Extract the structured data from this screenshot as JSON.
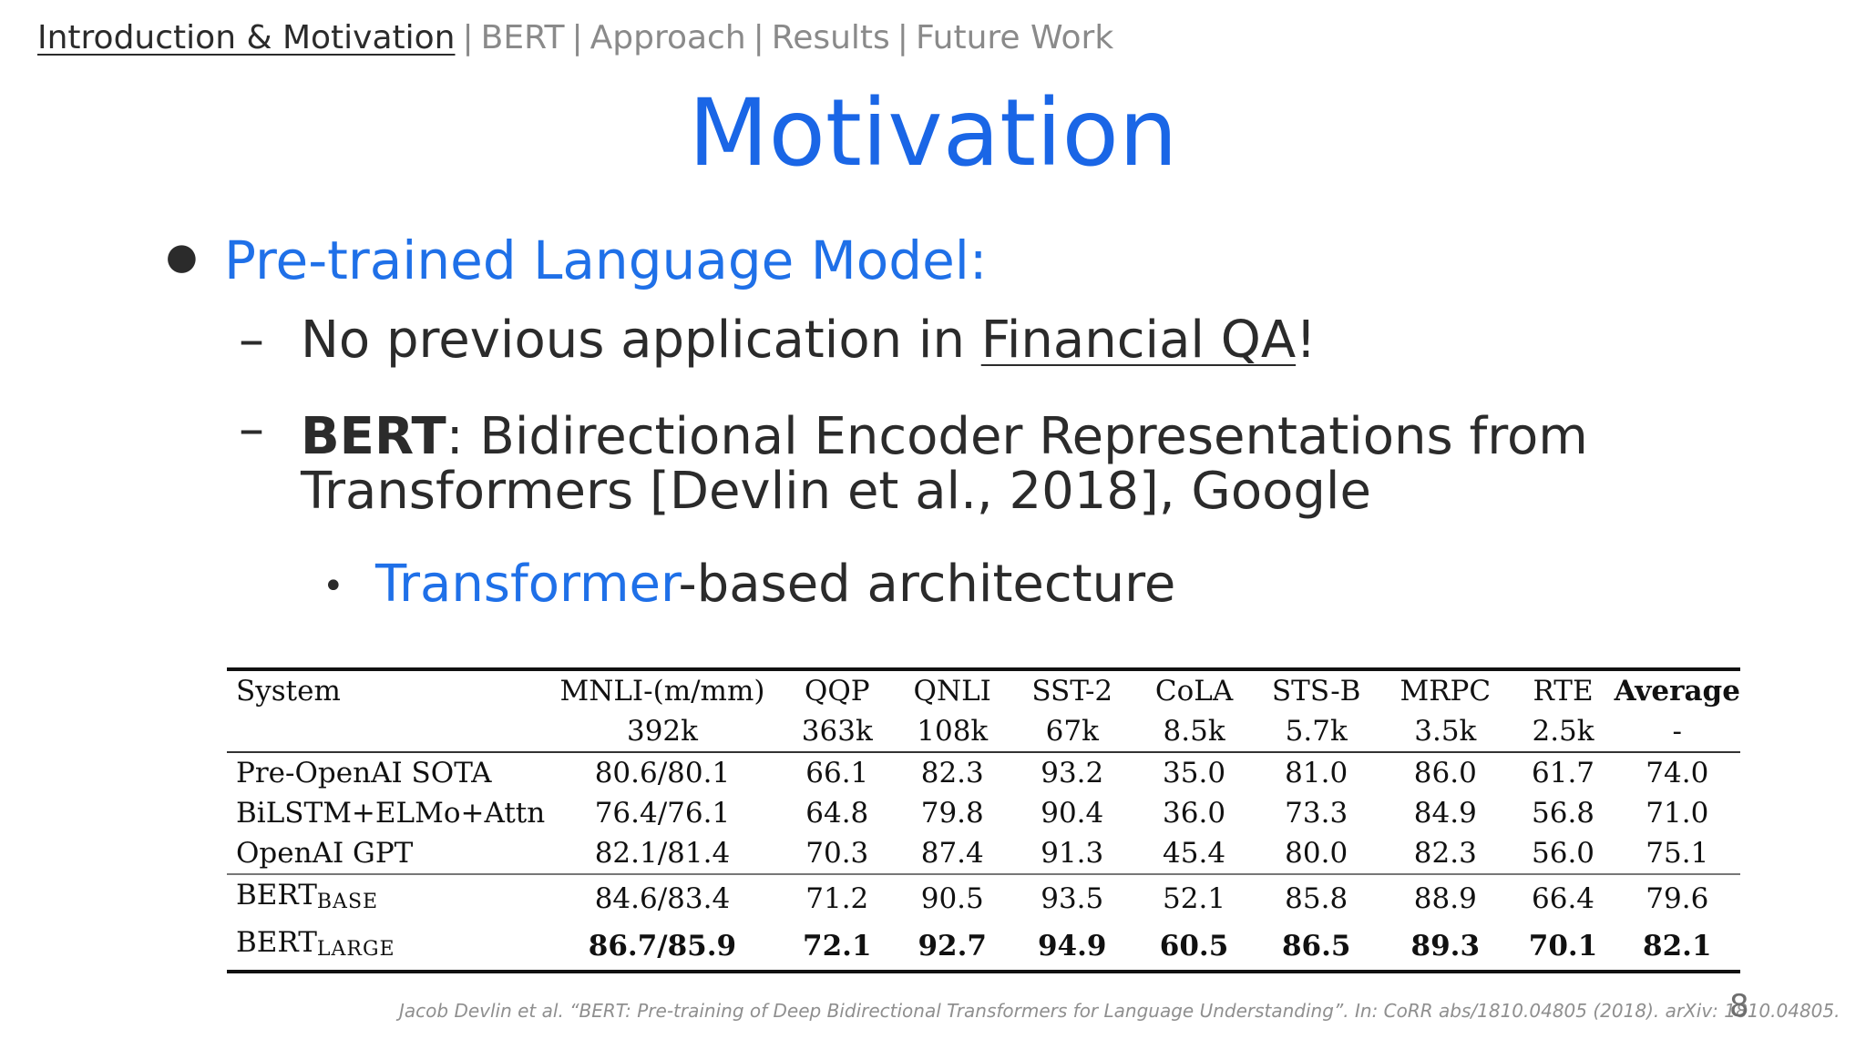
{
  "nav": {
    "items": [
      "Introduction & Motivation",
      "BERT",
      "Approach",
      "Results",
      "Future Work"
    ],
    "separator": "|"
  },
  "slide": {
    "title": "Motivation",
    "bullet1": "Pre-trained Language Model:",
    "sub1": {
      "dash": "–",
      "pre": "No previous application in ",
      "link": "Financial QA",
      "post": "!"
    },
    "sub2": {
      "dash": "–",
      "bold": "BERT",
      "line1": ": Bidirectional Encoder Representations from",
      "line2": "Transformers [Devlin et al., 2018], Google"
    },
    "sub3": {
      "dot": "•",
      "highlight": "Transformer",
      "rest": "-based architecture"
    }
  },
  "table": {
    "headers": [
      "System",
      "MNLI-(m/mm)",
      "QQP",
      "QNLI",
      "SST-2",
      "CoLA",
      "STS-B",
      "MRPC",
      "RTE",
      "Average"
    ],
    "sizes": [
      "",
      "392k",
      "363k",
      "108k",
      "67k",
      "8.5k",
      "5.7k",
      "3.5k",
      "2.5k",
      "-"
    ],
    "rows": [
      {
        "system": "Pre-OpenAI SOTA",
        "cells": [
          "80.6/80.1",
          "66.1",
          "82.3",
          "93.2",
          "35.0",
          "81.0",
          "86.0",
          "61.7",
          "74.0"
        ]
      },
      {
        "system": "BiLSTM+ELMo+Attn",
        "cells": [
          "76.4/76.1",
          "64.8",
          "79.8",
          "90.4",
          "36.0",
          "73.3",
          "84.9",
          "56.8",
          "71.0"
        ]
      },
      {
        "system": "OpenAI GPT",
        "cells": [
          "82.1/81.4",
          "70.3",
          "87.4",
          "91.3",
          "45.4",
          "80.0",
          "82.3",
          "56.0",
          "75.1"
        ]
      },
      {
        "system": "BERT",
        "sub": "BASE",
        "cells": [
          "84.6/83.4",
          "71.2",
          "90.5",
          "93.5",
          "52.1",
          "85.8",
          "88.9",
          "66.4",
          "79.6"
        ]
      },
      {
        "system": "BERT",
        "sub": "LARGE",
        "cells": [
          "86.7/85.9",
          "72.1",
          "92.7",
          "94.9",
          "60.5",
          "86.5",
          "89.3",
          "70.1",
          "82.1"
        ]
      }
    ]
  },
  "citation": "Jacob Devlin et al. “BERT: Pre-training of Deep Bidirectional Transformers for Language Understanding”. In: CoRR abs/1810.04805 (2018). arXiv: 1810.04805.",
  "page_number": "8"
}
